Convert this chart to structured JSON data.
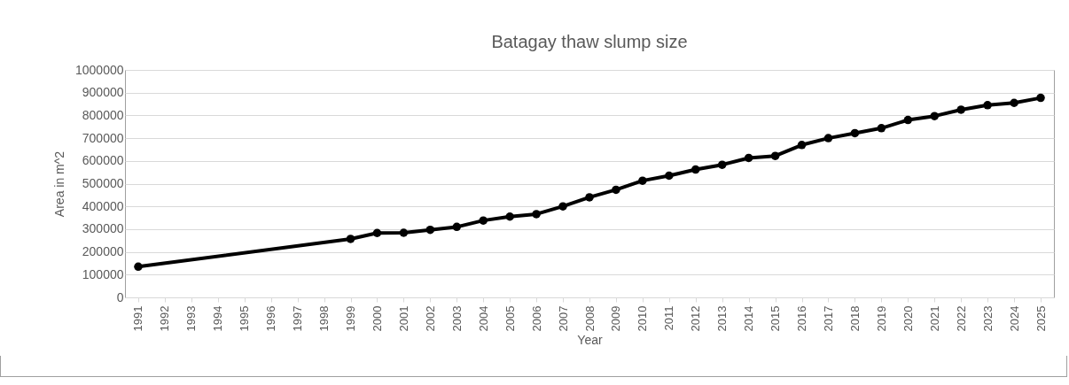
{
  "chart_data": {
    "type": "line",
    "title": "Batagay thaw slump size",
    "xlabel": "Year",
    "ylabel": "Area in m^2",
    "categories": [
      "1991",
      "1992",
      "1993",
      "1994",
      "1995",
      "1996",
      "1997",
      "1998",
      "1999",
      "2000",
      "2001",
      "2002",
      "2003",
      "2004",
      "2005",
      "2006",
      "2007",
      "2008",
      "2009",
      "2010",
      "2011",
      "2012",
      "2013",
      "2014",
      "2015",
      "2016",
      "2017",
      "2018",
      "2019",
      "2020",
      "2021",
      "2022",
      "2023",
      "2024",
      "2025"
    ],
    "series": [
      {
        "color": "#000000",
        "values": [
          135000,
          null,
          null,
          null,
          null,
          null,
          null,
          null,
          257000,
          283000,
          284000,
          297000,
          310000,
          338000,
          355000,
          366000,
          400000,
          440000,
          473000,
          513000,
          535000,
          562000,
          583000,
          613000,
          622000,
          670000,
          700000,
          722000,
          744000,
          780000,
          797000,
          825000,
          845000,
          855000,
          877000
        ]
      }
    ],
    "ylim": [
      0,
      1000000
    ],
    "yticks": [
      0,
      100000,
      200000,
      300000,
      400000,
      500000,
      600000,
      700000,
      800000,
      900000,
      1000000
    ],
    "grid": "y",
    "marker": "circle",
    "line_style": "solid"
  }
}
